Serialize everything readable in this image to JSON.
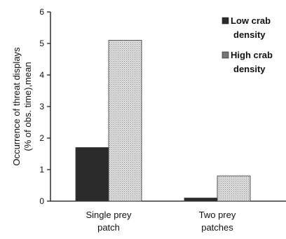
{
  "chart_data": {
    "type": "bar",
    "categories": [
      "Single prey patch",
      "Two prey patches"
    ],
    "category_label_lines": [
      [
        "Single prey",
        "patch"
      ],
      [
        "Two prey",
        "patches"
      ]
    ],
    "series": [
      {
        "name": "Low crab density",
        "name_lines": [
          "Low crab",
          "density"
        ],
        "values": [
          1.7,
          0.1
        ],
        "color": "#2b2b2b"
      },
      {
        "name": "High crab density",
        "name_lines": [
          "High crab",
          "density"
        ],
        "values": [
          5.1,
          0.8
        ],
        "color": "#d4d4d4"
      }
    ],
    "title": "",
    "xlabel": "",
    "ylabel": "Occurrence of threat displays (% of obs. time),mean",
    "ylabel_lines": [
      "Occurrence of threat displays",
      "(% of obs. time),mean"
    ],
    "ylim": [
      0,
      6
    ],
    "yticks": [
      0,
      1,
      2,
      3,
      4,
      5,
      6
    ],
    "grid": false,
    "legend_position": "top-right"
  }
}
